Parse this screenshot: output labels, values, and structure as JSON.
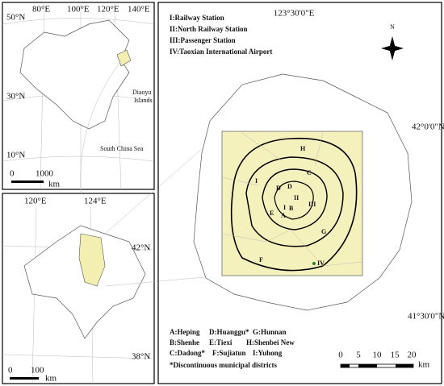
{
  "inset_china": {
    "lat_labels": [
      "50°N",
      "30°N",
      "10°N"
    ],
    "lon_labels": [
      "80°E",
      "100°E",
      "120°E",
      "140°E"
    ],
    "annotations": [
      "Diaoyu",
      "Islands",
      "South China Sea"
    ],
    "scale": [
      "0",
      "1000",
      "km"
    ]
  },
  "inset_liaoning": {
    "lon_labels": [
      "120°E",
      "124°E"
    ],
    "lat_labels": [
      "42°N",
      "38°N"
    ],
    "scale": [
      "0",
      "100",
      "km"
    ]
  },
  "main_map": {
    "lon_label": "123°30'0\"E",
    "lat_labels": [
      "42°0'0\"N",
      "41°30'0\"N"
    ],
    "stations": [
      "I:Railway Station",
      "II:North Railway Station",
      "III:Passenger Station",
      "IV:Taoxian International Airport"
    ],
    "north": "N",
    "map_labels": [
      "H",
      "I",
      "C",
      "D",
      "D",
      "A",
      "B",
      "E",
      "G",
      "F",
      "IV",
      "II",
      "III",
      "I"
    ],
    "district_key": [
      "A:Heping",
      "D:Huanggu*",
      "G:Hunnan",
      "B:Shenhe",
      "E:Tiexi",
      "H:Shenbei New",
      "C:Dadong*",
      "F:Sujiatun",
      "I:Yuhong"
    ],
    "note": "*Discontinuous municipal districts",
    "scale": [
      "0",
      "5",
      "10",
      "15",
      "20",
      "km"
    ]
  }
}
